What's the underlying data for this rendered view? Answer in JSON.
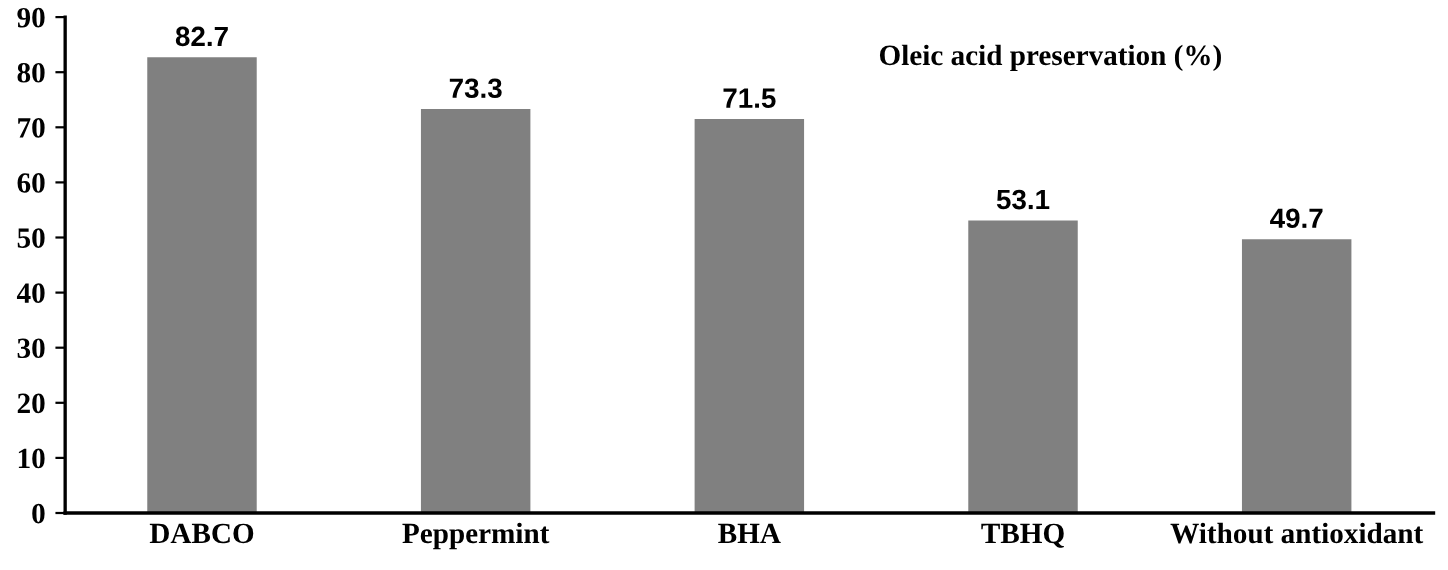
{
  "chart_data": {
    "type": "bar",
    "title": "Oleic acid preservation (%)",
    "categories": [
      "DABCO",
      "Peppermint",
      "BHA",
      "TBHQ",
      "Without antioxidant"
    ],
    "values": [
      82.7,
      73.3,
      71.5,
      53.1,
      49.7
    ],
    "color": "#808080",
    "ylim": [
      0,
      90
    ],
    "yticks": [
      0,
      10,
      20,
      30,
      40,
      50,
      60,
      70,
      80,
      90
    ],
    "data_labels": true,
    "grid": false,
    "legend": false
  }
}
